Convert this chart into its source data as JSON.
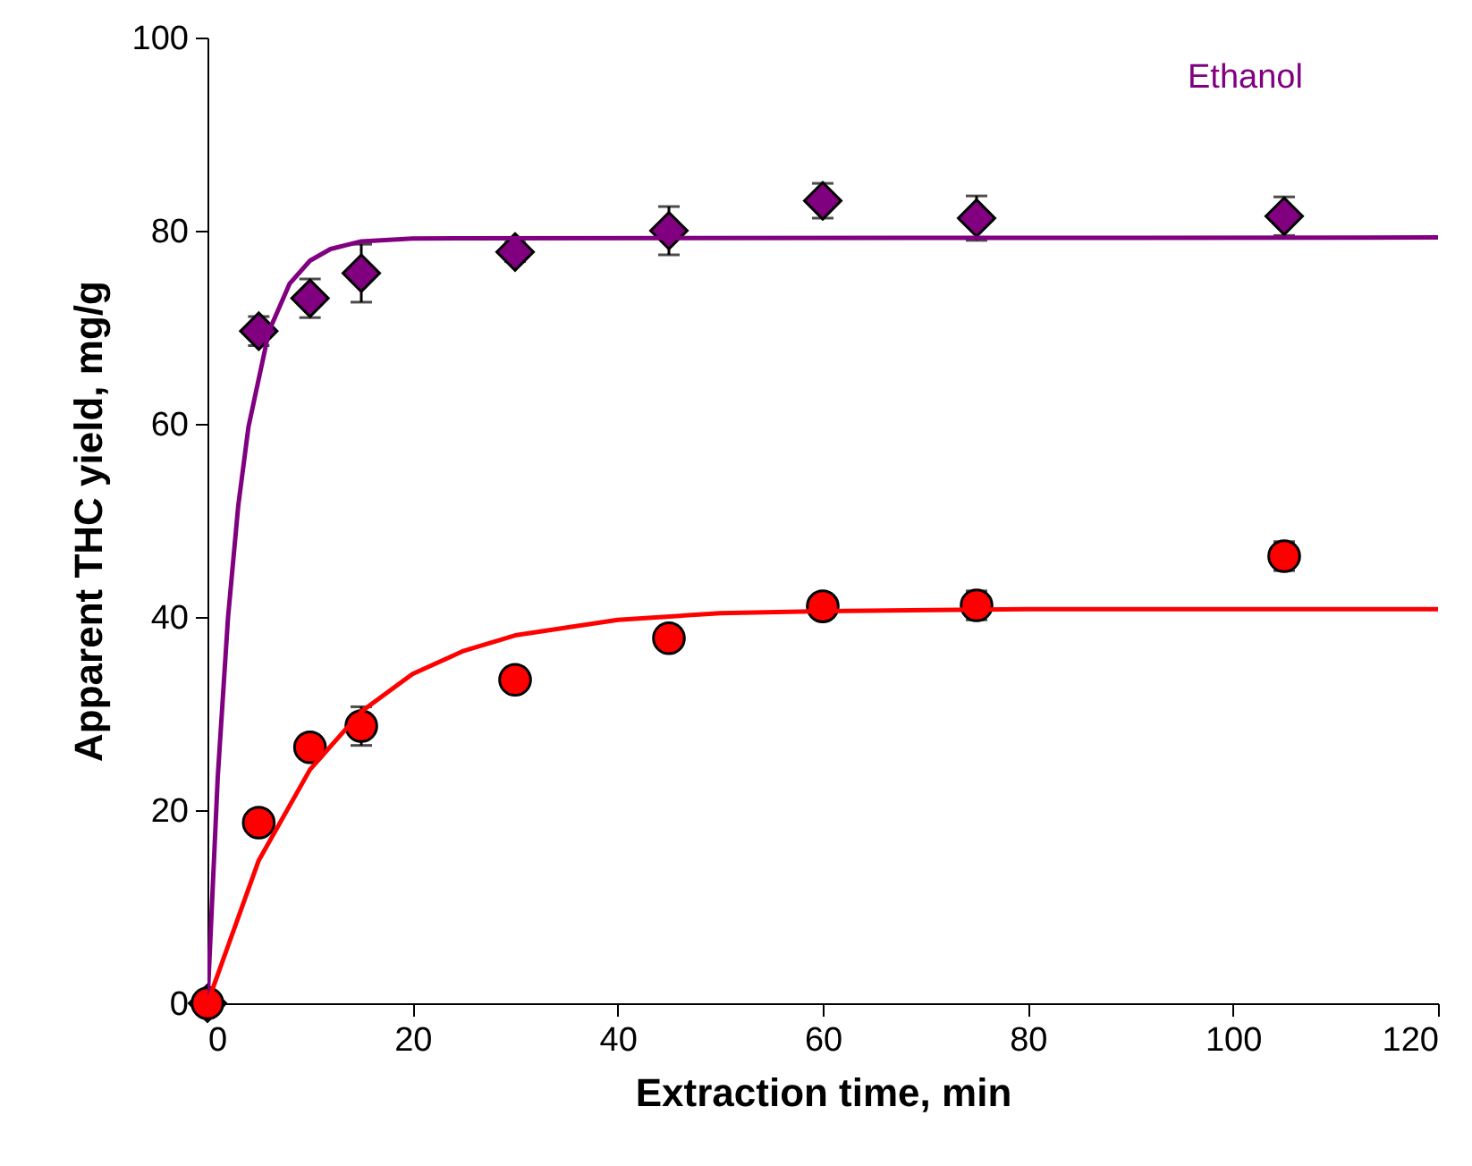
{
  "chart_data": {
    "type": "scatter",
    "xlabel": "Extraction time, min",
    "ylabel": "Apparent THC yield, mg/g",
    "xlim": [
      0,
      120
    ],
    "xticks": [
      0,
      20,
      40,
      60,
      80,
      100,
      120
    ],
    "ylim": [
      0,
      100
    ],
    "yticks": [
      0,
      20,
      40,
      60,
      80,
      100
    ],
    "grid": false,
    "series": [
      {
        "name": "Ethanol",
        "marker": "diamond",
        "color": "#800080",
        "x": [
          0,
          5,
          10,
          15,
          30,
          45,
          60,
          75,
          105
        ],
        "values": [
          0,
          69.6,
          73.0,
          75.6,
          77.8,
          80.0,
          83.1,
          81.3,
          81.5
        ],
        "errors": [
          null,
          1.5,
          2,
          3,
          1,
          2.5,
          1.8,
          2.3,
          2
        ]
      },
      {
        "marker": "circle",
        "color": "#ff0000",
        "x": [
          0,
          5,
          10,
          15,
          30,
          45,
          60,
          75,
          105
        ],
        "values": [
          0,
          18.7,
          26.5,
          28.7,
          33.5,
          37.8,
          41.1,
          41.2,
          46.3
        ],
        "errors": [
          null,
          null,
          null,
          2,
          null,
          null,
          null,
          1.5,
          1.5
        ]
      },
      {
        "type": "line",
        "marker": "none",
        "color": "#800080",
        "x": [
          0,
          1,
          2,
          3,
          4,
          6,
          8,
          10,
          12,
          15,
          20,
          120
        ],
        "values": [
          0,
          23.4,
          39.9,
          51.5,
          59.7,
          69.6,
          74.5,
          76.9,
          78.1,
          78.9,
          79.2,
          79.3
        ]
      },
      {
        "type": "line",
        "marker": "none",
        "color": "#ff0000",
        "x": [
          0,
          5,
          10,
          15,
          20,
          25,
          30,
          40,
          50,
          60,
          80,
          120
        ],
        "values": [
          0,
          14.8,
          24.2,
          30.2,
          34.1,
          36.5,
          38.1,
          39.7,
          40.4,
          40.6,
          40.8,
          40.8
        ]
      }
    ]
  }
}
